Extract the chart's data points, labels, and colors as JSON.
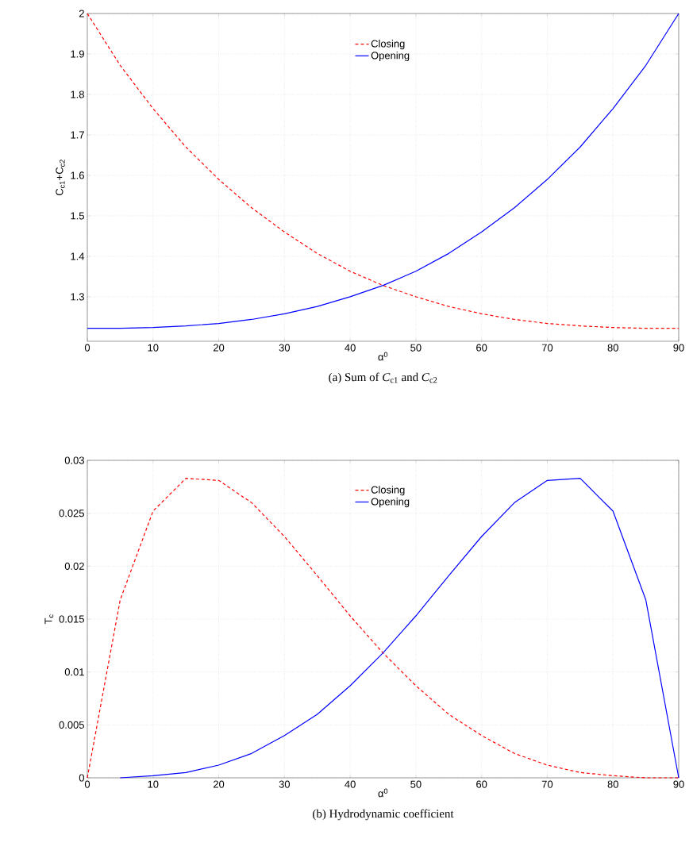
{
  "chart_data": [
    {
      "type": "line",
      "title": "(a) Sum of *C*$_{c1}$ and *C*$_{c2}$",
      "xlabel": "α$^{0}$",
      "ylabel": "C$_{c1}$+C$_{c2}$",
      "x": [
        0,
        5,
        10,
        15,
        20,
        25,
        30,
        35,
        40,
        45,
        50,
        55,
        60,
        65,
        70,
        75,
        80,
        85,
        90
      ],
      "series": [
        {
          "name": "Closing",
          "color": "#ff0000",
          "line_style": "dashed",
          "values": [
            2.0,
            1.872,
            1.765,
            1.67,
            1.59,
            1.52,
            1.46,
            1.407,
            1.363,
            1.328,
            1.3,
            1.276,
            1.258,
            1.244,
            1.234,
            1.228,
            1.224,
            1.222,
            1.222
          ]
        },
        {
          "name": "Opening",
          "color": "#0000ff",
          "line_style": "solid",
          "values": [
            1.222,
            1.222,
            1.224,
            1.228,
            1.234,
            1.244,
            1.258,
            1.276,
            1.3,
            1.328,
            1.363,
            1.407,
            1.46,
            1.52,
            1.59,
            1.67,
            1.765,
            1.872,
            2.0
          ]
        }
      ],
      "xlim": [
        0,
        90
      ],
      "ylim": [
        1.19,
        2
      ],
      "xticks": [
        0,
        10,
        20,
        30,
        40,
        50,
        60,
        70,
        80,
        90
      ],
      "yticks": [
        1.3,
        1.4,
        1.5,
        1.6,
        1.7,
        1.8,
        1.9,
        2
      ],
      "grid": true,
      "legend": "top"
    },
    {
      "type": "line",
      "title": "(b) Hydrodynamic coefficient",
      "xlabel": "α$^{0}$",
      "ylabel": "T$_{c}$",
      "x": [
        0,
        5,
        10,
        15,
        20,
        25,
        30,
        35,
        40,
        45,
        50,
        55,
        60,
        65,
        70,
        75,
        80,
        85,
        90
      ],
      "series": [
        {
          "name": "Closing",
          "color": "#ff0000",
          "line_style": "dashed",
          "values": [
            0,
            0.0168,
            0.0252,
            0.0283,
            0.0281,
            0.026,
            0.0228,
            0.0191,
            0.0153,
            0.0118,
            0.0087,
            0.006,
            0.004,
            0.0023,
            0.0012,
            0.0005,
            0.0002,
            0,
            0
          ]
        },
        {
          "name": "Opening",
          "color": "#0000ff",
          "line_style": "solid",
          "values": [
            null,
            0,
            0.0002,
            0.0005,
            0.0012,
            0.0023,
            0.004,
            0.006,
            0.0087,
            0.0118,
            0.0153,
            0.0191,
            0.0228,
            0.026,
            0.0281,
            0.0283,
            0.0252,
            0.0168,
            0
          ]
        }
      ],
      "xlim": [
        0,
        90
      ],
      "ylim": [
        0,
        0.03
      ],
      "xticks": [
        0,
        10,
        20,
        30,
        40,
        50,
        60,
        70,
        80,
        90
      ],
      "yticks": [
        0,
        0.005,
        0.01,
        0.015,
        0.02,
        0.025,
        0.03
      ],
      "grid": true,
      "legend": "top"
    }
  ]
}
